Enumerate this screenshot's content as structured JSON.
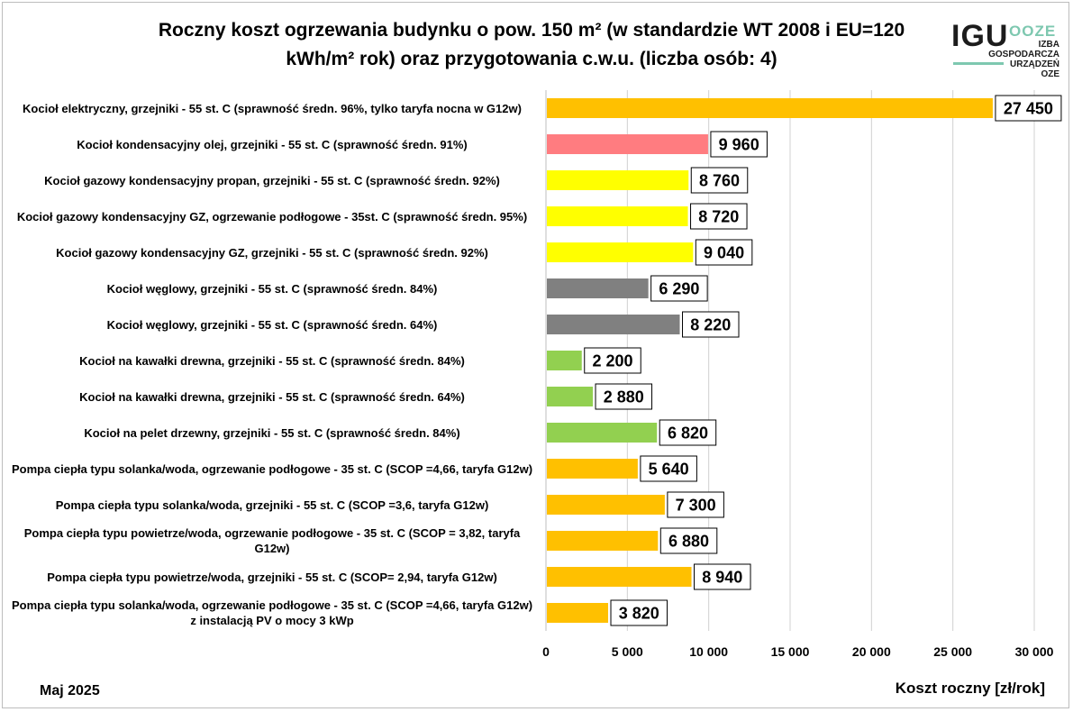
{
  "title_line1": "Roczny koszt ogrzewania budynku  o pow. 150 m²  (w standardzie WT 2008 i EU=120",
  "title_line2": "kWh/m² rok) oraz przygotowania c.w.u. (liczba osób: 4)",
  "logo": {
    "igu": "IGU",
    "oze_mark": "OOZE",
    "lines": [
      "IZBA",
      "GOSPODARCZA",
      "URZĄDZEŃ",
      "OZE"
    ],
    "accent_color": "#7ec8b0"
  },
  "footer_date": "Maj 2025",
  "chart_data": {
    "type": "bar",
    "orientation": "horizontal",
    "xlabel": "Koszt roczny [zł/rok]",
    "xlim": [
      0,
      30000
    ],
    "xticks": [
      0,
      5000,
      10000,
      15000,
      20000,
      25000,
      30000
    ],
    "xtick_labels": [
      "0",
      "5 000",
      "10 000",
      "15 000",
      "20 000",
      "25 000",
      "30 000"
    ],
    "grid": "vertical",
    "categories": [
      "Kocioł  elektryczny,  grzejniki - 55 st. C  (sprawność średn. 96%, tylko taryfa nocna w G12w)",
      "Kocioł  kondensacyjny olej,  grzejniki - 55 st. C   (sprawność średn. 91%)",
      "Kocioł gazowy kondensacyjny propan, grzejniki - 55 st. C  (sprawność średn. 92%)",
      "Kocioł gazowy kondensacyjny GZ, ogrzewanie podłogowe - 35st. C   (sprawność średn. 95%)",
      "Kocioł gazowy kondensacyjny GZ, grzejniki - 55 st. C   (sprawność średn. 92%)",
      "Kocioł węglowy,  grzejniki - 55 st. C   (sprawność średn. 84%)",
      "Kocioł węglowy,  grzejniki - 55 st. C  (sprawność średn. 64%)",
      "Kocioł na kawałki drewna, grzejniki - 55 st. C (sprawność średn. 84%)",
      "Kocioł na kawałki drewna, grzejniki - 55 st. C  (sprawność średn. 64%)",
      "Kocioł na pelet drzewny, grzejniki - 55 st. C (sprawność średn. 84%)",
      "Pompa ciepła typu solanka/woda, ogrzewanie podłogowe - 35 st. C  (SCOP =4,66, taryfa G12w)",
      "Pompa ciepła typu solanka/woda, grzejniki - 55 st. C (SCOP =3,6, taryfa G12w)",
      "Pompa ciepła typu powietrze/woda, ogrzewanie podłogowe - 35 st. C (SCOP = 3,82, taryfa G12w)",
      "Pompa ciepła typu powietrze/woda, grzejniki - 55 st. C (SCOP= 2,94, taryfa G12w)",
      "Pompa ciepła typu solanka/woda, ogrzewanie podłogowe - 35 st. C  (SCOP =4,66, taryfa G12w) z instalacją PV o mocy 3 kWp"
    ],
    "values": [
      27450,
      9960,
      8760,
      8720,
      9040,
      6290,
      8220,
      2200,
      2880,
      6820,
      5640,
      7300,
      6880,
      8940,
      3820
    ],
    "value_labels": [
      "27 450",
      "9 960",
      "8 760",
      "8 720",
      "9 040",
      "6 290",
      "8 220",
      "2 200",
      "2 880",
      "6 820",
      "5 640",
      "7 300",
      "6 880",
      "8 940",
      "3 820"
    ],
    "colors": [
      "#ffc000",
      "#ff7c80",
      "#ffff00",
      "#ffff00",
      "#ffff00",
      "#808080",
      "#808080",
      "#92d050",
      "#92d050",
      "#92d050",
      "#ffc000",
      "#ffc000",
      "#ffc000",
      "#ffc000",
      "#ffc000"
    ]
  }
}
